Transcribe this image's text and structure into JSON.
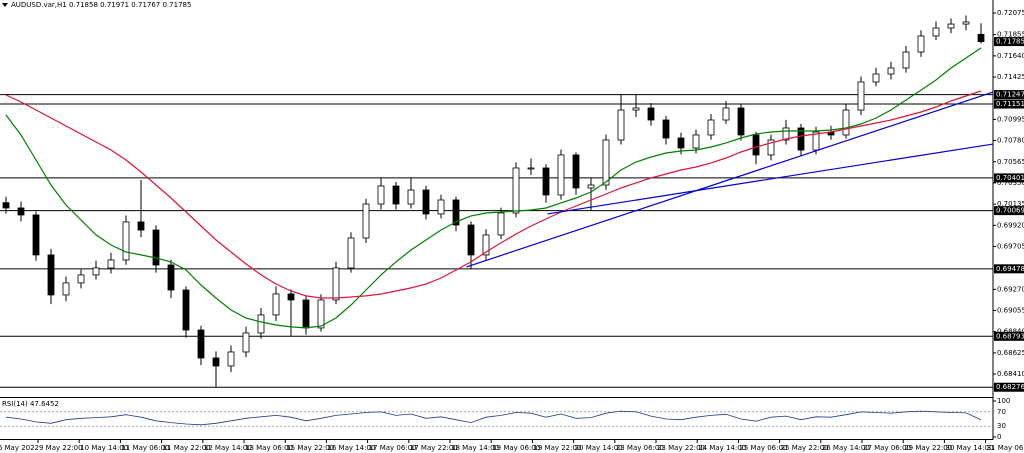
{
  "chart_data": {
    "type": "candlestick",
    "title": "AUDUSD.var,H1  0.71858 0.71971 0.71767 0.71785",
    "ylim": [
      0.68187,
      0.72126
    ],
    "yticks": [
      0.72075,
      0.71855,
      {
        "value": 0.7164,
        "label": "0.71640"
      },
      0.71425,
      0.70995,
      {
        "value": 0.7078,
        "label": "0.70780"
      },
      0.70565,
      {
        "value": 0.7035,
        "label": "0.70350"
      },
      0.70135,
      {
        "value": 0.6992,
        "label": "0.69920"
      },
      0.69705,
      {
        "value": 0.6927,
        "label": "0.69270"
      },
      0.69055,
      {
        "value": 0.6884,
        "label": "0.68840"
      },
      0.68625,
      {
        "value": 0.6841,
        "label": "0.68410"
      }
    ],
    "levels": [
      0.71247,
      0.71151,
      0.70401,
      0.70069,
      0.69478,
      0.68793,
      0.68276
    ],
    "last_price": 0.71785,
    "x_labels": [
      "6 May 2022",
      "9 May 22:00",
      "10 May 14:00",
      "11 May 06:00",
      "11 May 22:00",
      "12 May 14:00",
      "13 May 06:00",
      "15 May 22:00",
      "16 May 14:00",
      "17 May 06:00",
      "17 May 22:00",
      "18 May 14:00",
      "19 May 06:00",
      "19 May 22:00",
      "20 May 14:00",
      "23 May 06:00",
      "23 May 22:00",
      "24 May 14:00",
      "25 May 06:00",
      "25 May 22:00",
      "26 May 14:00",
      "27 May 06:00",
      "29 May 22:00",
      "30 May 14:00",
      "31 May 06:00"
    ],
    "candles": [
      [
        0.7015,
        0.7021,
        0.7004,
        0.70096
      ],
      [
        0.70096,
        0.7016,
        0.6996,
        0.70025
      ],
      [
        0.70025,
        0.7006,
        0.6956,
        0.69619
      ],
      [
        0.69619,
        0.6968,
        0.6912,
        0.69213
      ],
      [
        0.69213,
        0.694,
        0.6915,
        0.69335
      ],
      [
        0.69335,
        0.6947,
        0.6928,
        0.69416
      ],
      [
        0.69416,
        0.6956,
        0.6937,
        0.69487
      ],
      [
        0.69487,
        0.6964,
        0.6943,
        0.69568
      ],
      [
        0.69568,
        0.7002,
        0.6952,
        0.69954
      ],
      [
        0.69954,
        0.7038,
        0.698,
        0.69872
      ],
      [
        0.69872,
        0.6992,
        0.6944,
        0.69517
      ],
      [
        0.69517,
        0.6957,
        0.6918,
        0.69263
      ],
      [
        0.69263,
        0.693,
        0.6878,
        0.68857
      ],
      [
        0.68857,
        0.689,
        0.685,
        0.68573
      ],
      [
        0.68573,
        0.6864,
        0.68276,
        0.68492
      ],
      [
        0.68492,
        0.687,
        0.6843,
        0.68634
      ],
      [
        0.68634,
        0.6889,
        0.6858,
        0.68827
      ],
      [
        0.68827,
        0.6908,
        0.6877,
        0.6901
      ],
      [
        0.6901,
        0.693,
        0.6895,
        0.69223
      ],
      [
        0.69223,
        0.6927,
        0.68793,
        0.69162
      ],
      [
        0.69162,
        0.692,
        0.6881,
        0.68878
      ],
      [
        0.68878,
        0.6922,
        0.6884,
        0.69162
      ],
      [
        0.69162,
        0.6955,
        0.6912,
        0.69487
      ],
      [
        0.69487,
        0.6985,
        0.6944,
        0.69791
      ],
      [
        0.69791,
        0.7019,
        0.6974,
        0.70136
      ],
      [
        0.70136,
        0.70401,
        0.7008,
        0.70319
      ],
      [
        0.70319,
        0.7036,
        0.7008,
        0.70136
      ],
      [
        0.70136,
        0.70401,
        0.7009,
        0.70278
      ],
      [
        0.70278,
        0.7032,
        0.6998,
        0.70035
      ],
      [
        0.70035,
        0.7023,
        0.6999,
        0.70177
      ],
      [
        0.70177,
        0.7021,
        0.6986,
        0.69923
      ],
      [
        0.69923,
        0.6996,
        0.69478,
        0.69619
      ],
      [
        0.69619,
        0.6988,
        0.6957,
        0.69822
      ],
      [
        0.69822,
        0.701,
        0.6978,
        0.70045
      ],
      [
        0.70045,
        0.7056,
        0.7,
        0.70502
      ],
      [
        0.70502,
        0.706,
        0.7043,
        0.70502
      ],
      [
        0.70502,
        0.7054,
        0.7015,
        0.70228
      ],
      [
        0.70228,
        0.7069,
        0.7018,
        0.70634
      ],
      [
        0.70634,
        0.7066,
        0.7023,
        0.70299
      ],
      [
        0.70299,
        0.704,
        0.70069,
        0.70329
      ],
      [
        0.70329,
        0.7084,
        0.7028,
        0.70786
      ],
      [
        0.70786,
        0.71247,
        0.7074,
        0.7109
      ],
      [
        0.7109,
        0.71247,
        0.7102,
        0.71111
      ],
      [
        0.71111,
        0.7116,
        0.7093,
        0.70989
      ],
      [
        0.70989,
        0.7103,
        0.7074,
        0.70806
      ],
      [
        0.70806,
        0.7086,
        0.7064,
        0.70705
      ],
      [
        0.70705,
        0.7089,
        0.7065,
        0.70837
      ],
      [
        0.70837,
        0.7105,
        0.7079,
        0.70989
      ],
      [
        0.70989,
        0.7118,
        0.7095,
        0.71111
      ],
      [
        0.71111,
        0.71151,
        0.7078,
        0.70837
      ],
      [
        0.70837,
        0.7087,
        0.7054,
        0.70634
      ],
      [
        0.70634,
        0.7084,
        0.7058,
        0.70786
      ],
      [
        0.70786,
        0.7099,
        0.7074,
        0.70908
      ],
      [
        0.70908,
        0.7095,
        0.7062,
        0.70684
      ],
      [
        0.70684,
        0.7092,
        0.7064,
        0.70867
      ],
      [
        0.70867,
        0.7093,
        0.7079,
        0.70837
      ],
      [
        0.70837,
        0.71151,
        0.708,
        0.7109
      ],
      [
        0.7109,
        0.7143,
        0.7104,
        0.71375
      ],
      [
        0.71375,
        0.7152,
        0.7133,
        0.71456
      ],
      [
        0.71456,
        0.7158,
        0.714,
        0.71517
      ],
      [
        0.71517,
        0.7174,
        0.7147,
        0.71679
      ],
      [
        0.71679,
        0.719,
        0.7163,
        0.71842
      ],
      [
        0.71842,
        0.7199,
        0.718,
        0.71923
      ],
      [
        0.71923,
        0.7202,
        0.7187,
        0.71963
      ],
      [
        0.71963,
        0.7205,
        0.719,
        0.71984
      ],
      [
        0.71858,
        0.71971,
        0.71767,
        0.71785
      ]
    ],
    "series": [
      {
        "color": "#008000",
        "values": [
          0.7104,
          0.70837,
          0.70583,
          0.70329,
          0.70126,
          0.69974,
          0.69822,
          0.6972,
          0.69649,
          0.69619,
          0.69588,
          0.69548,
          0.69466,
          0.69314,
          0.69182,
          0.6906,
          0.68979,
          0.68939,
          0.68908,
          0.68888,
          0.68878,
          0.68898,
          0.68979,
          0.69111,
          0.69263,
          0.69416,
          0.69548,
          0.69669,
          0.69771,
          0.69872,
          0.69954,
          0.70015,
          0.70045,
          0.70055,
          0.70065,
          0.70075,
          0.70096,
          0.70147,
          0.70197,
          0.70258,
          0.7036,
          0.70481,
          0.70563,
          0.70613,
          0.70654,
          0.70674,
          0.70684,
          0.70715,
          0.70756,
          0.70806,
          0.70847,
          0.70867,
          0.70877,
          0.70877,
          0.70877,
          0.70887,
          0.70908,
          0.70948,
          0.71009,
          0.7109,
          0.71192,
          0.71293,
          0.71395,
          0.71517,
          0.71618,
          0.7172
        ]
      },
      {
        "color": "#dc143c",
        "values": [
          0.71243,
          0.71172,
          0.7109,
          0.71009,
          0.70928,
          0.70847,
          0.70766,
          0.70684,
          0.70583,
          0.70461,
          0.70329,
          0.70197,
          0.70055,
          0.69913,
          0.69771,
          0.69649,
          0.69527,
          0.69416,
          0.69324,
          0.69253,
          0.69203,
          0.69182,
          0.69182,
          0.69192,
          0.69203,
          0.69223,
          0.69253,
          0.69284,
          0.69324,
          0.69385,
          0.69466,
          0.69548,
          0.69649,
          0.69741,
          0.69832,
          0.69913,
          0.69984,
          0.70055,
          0.70116,
          0.70177,
          0.70238,
          0.70299,
          0.7035,
          0.704,
          0.70441,
          0.70481,
          0.70512,
          0.70553,
          0.70603,
          0.70664,
          0.70715,
          0.70756,
          0.70796,
          0.70827,
          0.70847,
          0.70867,
          0.70898,
          0.70928,
          0.70959,
          0.70989,
          0.7103,
          0.7107,
          0.71121,
          0.71182,
          0.71233,
          0.71283
        ]
      }
    ],
    "trendlines": [
      {
        "color": "#0000cd",
        "points": [
          [
            30.7,
            0.69497
          ],
          [
            65.8,
            0.71273
          ]
        ]
      },
      {
        "color": "#0000cd",
        "points": [
          [
            36.1,
            0.70035
          ],
          [
            65.8,
            0.70745
          ]
        ]
      }
    ],
    "rsi": {
      "title": "RSI(14) 47.6452",
      "color": "#1e3c8c",
      "ylim": [
        0,
        100
      ],
      "yticks": [
        100,
        70,
        30,
        0
      ],
      "values": [
        55,
        50,
        42,
        38,
        48,
        52,
        54,
        56,
        62,
        55,
        45,
        40,
        36,
        34,
        38,
        45,
        52,
        56,
        60,
        55,
        45,
        52,
        60,
        64,
        68,
        70,
        60,
        64,
        52,
        56,
        48,
        40,
        55,
        60,
        68,
        66,
        55,
        64,
        52,
        54,
        66,
        72,
        70,
        58,
        50,
        48,
        55,
        60,
        63,
        50,
        44,
        55,
        58,
        48,
        56,
        55,
        62,
        70,
        68,
        66,
        70,
        72,
        70,
        68,
        67,
        47.6452
      ]
    }
  }
}
